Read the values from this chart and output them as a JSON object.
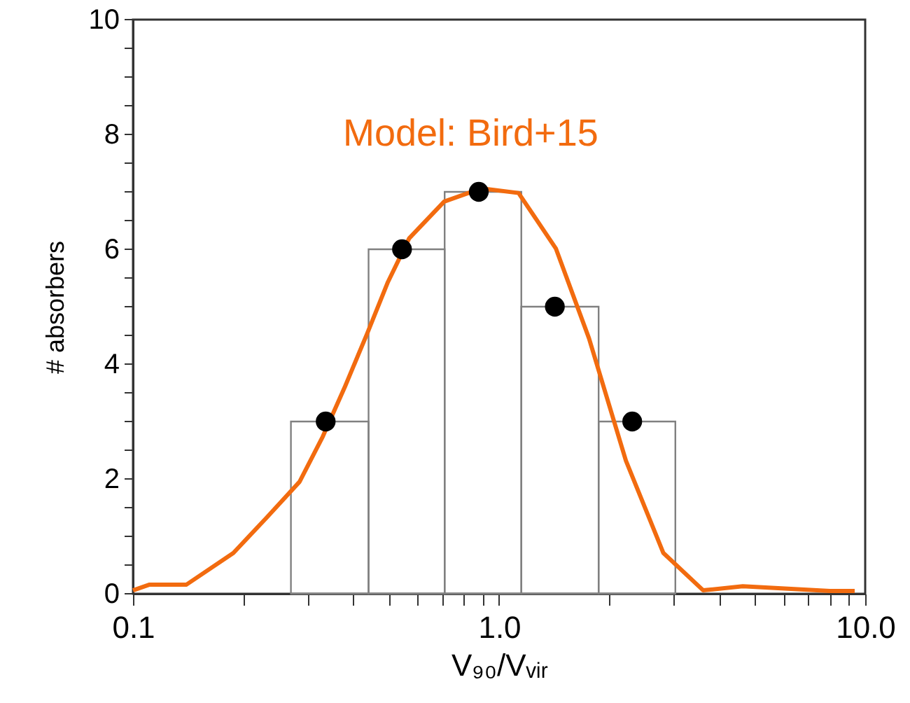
{
  "chart_data": {
    "type": "histogram",
    "bins": [
      0.27,
      0.44,
      0.71,
      1.15,
      1.87,
      3.03
    ],
    "values": [
      3,
      6,
      7,
      5,
      3
    ],
    "color": "#808080",
    "series": [
      {
        "type": "line",
        "color": "#f26b0f",
        "x": [
          0.1,
          0.111,
          0.14,
          0.188,
          0.232,
          0.285,
          0.33,
          0.38,
          0.436,
          0.497,
          0.568,
          0.708,
          0.894,
          1.13,
          1.43,
          1.76,
          2.22,
          2.81,
          3.61,
          4.63,
          8.0,
          9.36
        ],
        "values": [
          0.06,
          0.16,
          0.16,
          0.71,
          1.33,
          1.95,
          2.74,
          3.62,
          4.53,
          5.43,
          6.19,
          6.83,
          7.06,
          6.98,
          6.01,
          4.45,
          2.32,
          0.71,
          0.06,
          0.13,
          0.05,
          0.05
        ]
      },
      {
        "type": "scatter",
        "color": "#000000",
        "marker": "circle",
        "x": [
          0.336,
          0.543,
          0.88,
          1.42,
          2.31
        ],
        "values": [
          3,
          6,
          7,
          5,
          3
        ]
      }
    ],
    "xlabel": "V₉₀/Vᵥᵢᵣ",
    "ylabel": "# absorbers",
    "annotations": [
      "Model: Bird+15"
    ],
    "log": "x",
    "xlim": [
      0.1,
      10
    ],
    "xticks": [
      {
        "value": 0.1,
        "label": "0.1"
      },
      {
        "value": 0.2,
        "label": null
      },
      {
        "value": 0.3,
        "label": null
      },
      {
        "value": 0.4,
        "label": null
      },
      {
        "value": 0.5,
        "label": null
      },
      {
        "value": 0.6,
        "label": null
      },
      {
        "value": 0.7,
        "label": null
      },
      {
        "value": 0.8,
        "label": null
      },
      {
        "value": 0.9,
        "label": null
      },
      {
        "value": 1,
        "label": "1.0"
      },
      {
        "value": 2,
        "label": null
      },
      {
        "value": 3,
        "label": null
      },
      {
        "value": 4,
        "label": null
      },
      {
        "value": 5,
        "label": null
      },
      {
        "value": 6,
        "label": null
      },
      {
        "value": 7,
        "label": null
      },
      {
        "value": 8,
        "label": null
      },
      {
        "value": 9,
        "label": null
      },
      {
        "value": 10,
        "label": "10.0"
      }
    ],
    "ylim": [
      0,
      10
    ],
    "yticks": [
      0,
      {
        "value": 0.5,
        "label": null
      },
      {
        "value": 1,
        "label": null
      },
      {
        "value": 1.5,
        "label": null
      },
      2,
      {
        "value": 2.5,
        "label": null
      },
      {
        "value": 3,
        "label": null
      },
      {
        "value": 3.5,
        "label": null
      },
      4,
      {
        "value": 4.5,
        "label": null
      },
      {
        "value": 5,
        "label": null
      },
      {
        "value": 5.5,
        "label": null
      },
      6,
      {
        "value": 6.5,
        "label": null
      },
      {
        "value": 7,
        "label": null
      },
      {
        "value": 7.5,
        "label": null
      },
      8,
      {
        "value": 8.5,
        "label": null
      },
      {
        "value": 9,
        "label": null
      },
      {
        "value": 9.5,
        "label": null
      },
      10
    ],
    "grid": false
  }
}
